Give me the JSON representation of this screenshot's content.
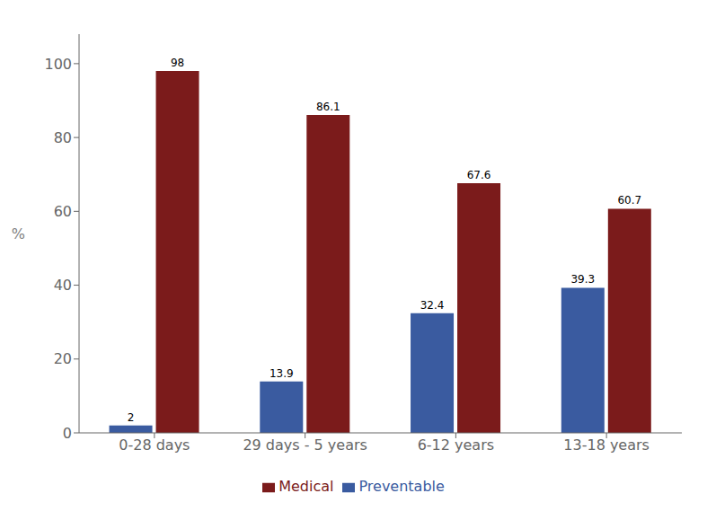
{
  "chart_data": {
    "type": "bar",
    "categories": [
      "0-28 days",
      "29 days - 5 years",
      "6-12 years",
      "13-18 years"
    ],
    "series": [
      {
        "name": "Preventable",
        "color": "#3A5BA0",
        "values": [
          2,
          13.9,
          32.4,
          39.3
        ]
      },
      {
        "name": "Medical",
        "color": "#7B1B1B",
        "values": [
          98,
          86.1,
          67.6,
          60.7
        ]
      }
    ],
    "ylabel": "%",
    "ylim": [
      0,
      108
    ],
    "yticks": [
      0,
      20,
      40,
      60,
      80,
      100
    ],
    "grid": false,
    "legend": "bottom",
    "data_labels": true
  }
}
